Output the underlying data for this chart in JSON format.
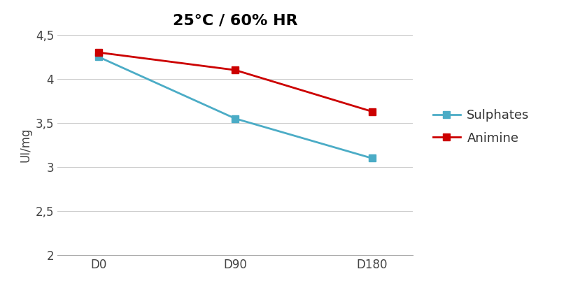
{
  "title": "25°C / 60% HR",
  "xlabel": "",
  "ylabel": "UI/mg",
  "x_labels": [
    "D0",
    "D90",
    "D180"
  ],
  "x_values": [
    0,
    1,
    2
  ],
  "sulphates": [
    4.25,
    3.55,
    3.1
  ],
  "animine": [
    4.3,
    4.1,
    3.63
  ],
  "sulphates_color": "#4BACC6",
  "animine_color": "#CC0000",
  "ylim": [
    2.0,
    4.5
  ],
  "yticks": [
    2.0,
    2.5,
    3.0,
    3.5,
    4.0,
    4.5
  ],
  "ytick_labels": [
    "2",
    "2,5",
    "3",
    "3,5",
    "4",
    "4,5"
  ],
  "legend_sulphates": "Sulphates",
  "legend_animine": "Animine",
  "title_fontsize": 16,
  "label_fontsize": 12,
  "tick_fontsize": 12,
  "legend_fontsize": 13,
  "marker_size": 7,
  "line_width": 2.0,
  "background_color": "#ffffff"
}
